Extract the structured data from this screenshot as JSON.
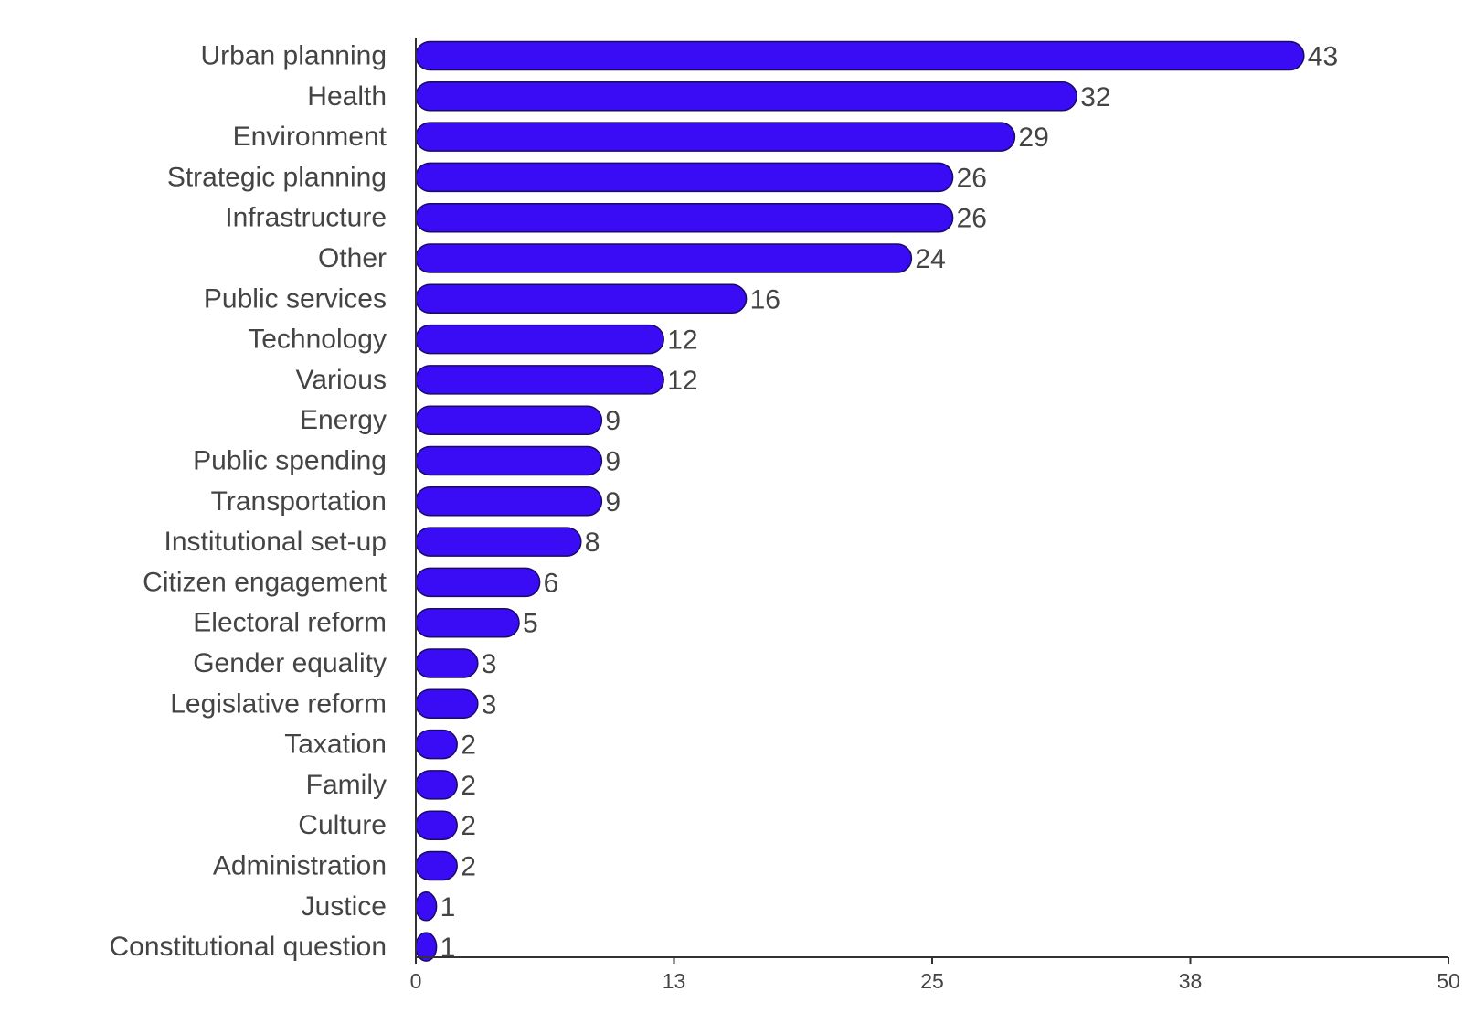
{
  "chart_data": {
    "type": "bar",
    "orientation": "horizontal",
    "title": "",
    "xlabel": "",
    "ylabel": "",
    "categories": [
      "Urban planning",
      "Health",
      "Environment",
      "Strategic planning",
      "Infrastructure",
      "Other",
      "Public services",
      "Technology",
      "Various",
      "Energy",
      "Public spending",
      "Transportation",
      "Institutional set-up",
      "Citizen engagement",
      "Electoral reform",
      "Gender equality",
      "Legislative reform",
      "Taxation",
      "Family",
      "Culture",
      "Administration",
      "Justice",
      "Constitutional question"
    ],
    "values": [
      43,
      32,
      29,
      26,
      26,
      24,
      16,
      12,
      12,
      9,
      9,
      9,
      8,
      6,
      5,
      3,
      3,
      2,
      2,
      2,
      2,
      1,
      1
    ],
    "xlim": [
      0,
      50
    ],
    "x_ticks": [
      0,
      12.5,
      25,
      37.5,
      50
    ],
    "x_tick_labels": [
      "0",
      "13",
      "25",
      "38",
      "50"
    ],
    "grid": false,
    "bar_color": "#3a0cf5",
    "bar_outline_color": "#1a0a66",
    "data_labels": true
  }
}
